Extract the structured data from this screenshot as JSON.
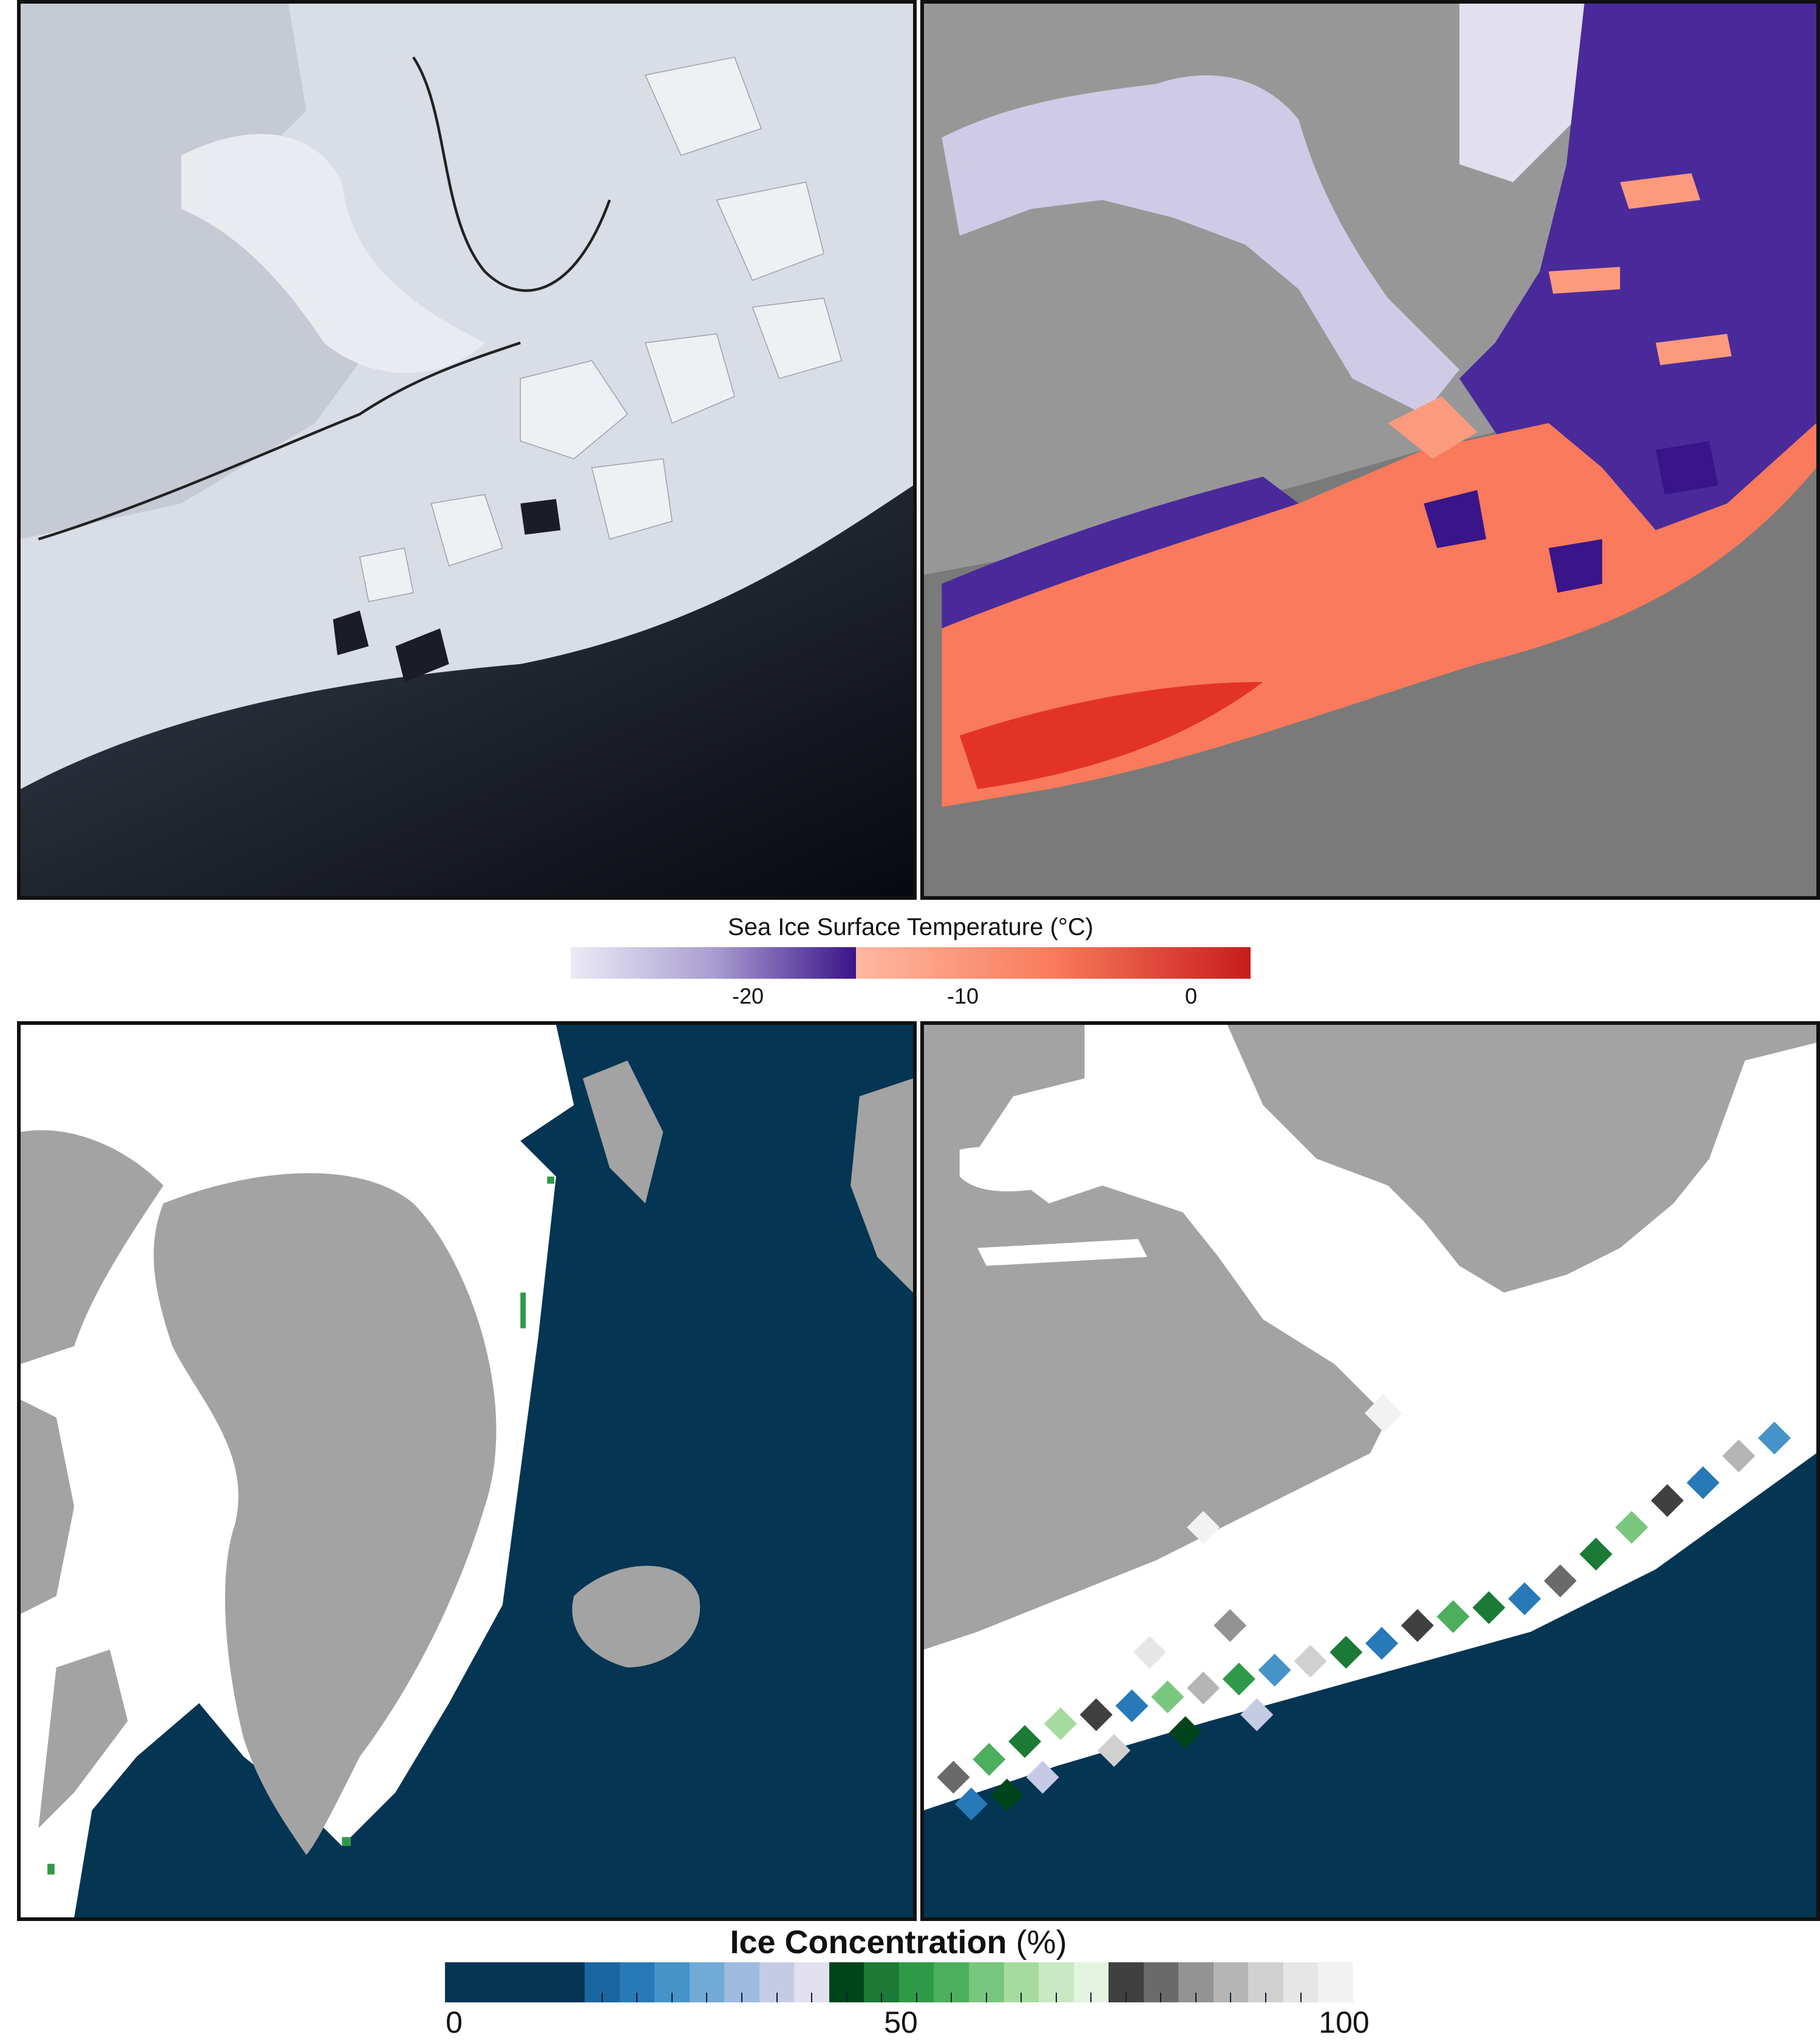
{
  "temperature_colorbar": {
    "title": "Sea Ice Surface Temperature (°C)",
    "ticks": [
      "-20",
      "-10",
      "0"
    ],
    "cold_colors": [
      "#ecebf5",
      "#cfcbe6",
      "#a99ed1",
      "#7f6cbb",
      "#5a3fa6",
      "#3a1489"
    ],
    "warm_colors": [
      "#fdb9a0",
      "#fc9a7e",
      "#f97a5c",
      "#f4573c",
      "#e33328",
      "#c81c1c"
    ]
  },
  "ice_colorbar": {
    "title_bold": "Ice Concentration",
    "title_unit": "(%)",
    "ticks": [
      "0",
      "50",
      "100"
    ],
    "swatches": [
      "#043553",
      "#043553",
      "#043553",
      "#043553",
      "#1a66a3",
      "#2879b8",
      "#4593c9",
      "#72aad6",
      "#9ebbdf",
      "#c6cbe5",
      "#e2e0ee",
      "#00441b",
      "#1b7a35",
      "#2e9a48",
      "#4caf5d",
      "#79c67e",
      "#a6dba0",
      "#c8e9c3",
      "#e4f4e0",
      "#404040",
      "#6a6a6a",
      "#939393",
      "#b5b5b5",
      "#d0d0d0",
      "#e6e6e6",
      "#f2f2f2"
    ]
  },
  "map_colors": {
    "land": "#a3a3a3",
    "ocean": "#043553",
    "ice": "#ffffff",
    "no_data": "#7a7a7a"
  }
}
